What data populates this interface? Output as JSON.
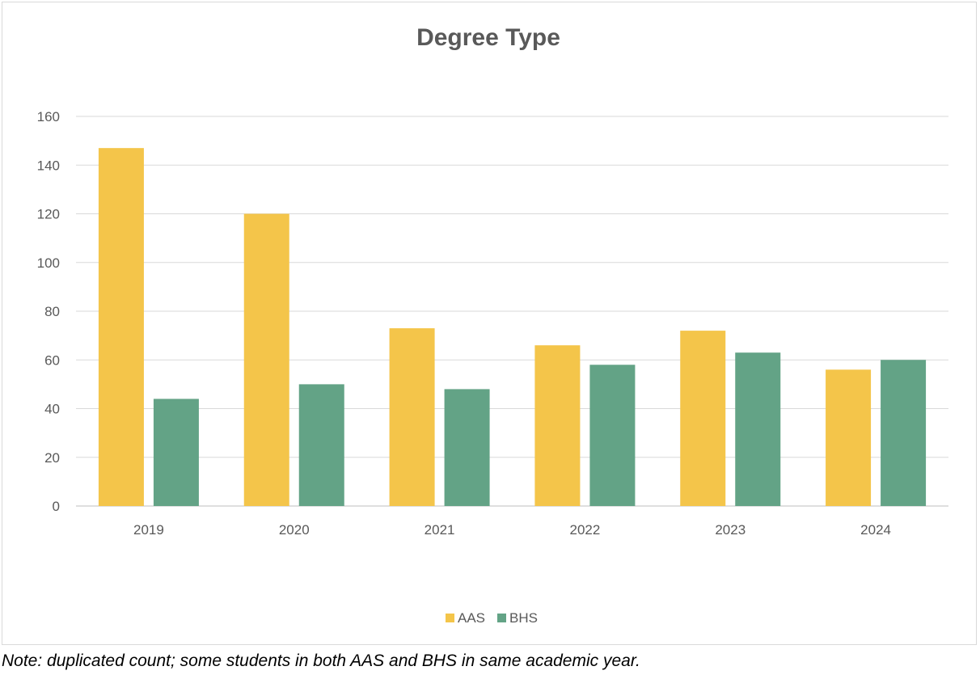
{
  "chart_data": {
    "type": "bar",
    "title": "Degree Type",
    "xlabel": "",
    "ylabel": "",
    "categories": [
      "2019",
      "2020",
      "2021",
      "2022",
      "2023",
      "2024"
    ],
    "series": [
      {
        "name": "AAS",
        "values": [
          147,
          120,
          73,
          66,
          72,
          56
        ],
        "color": "#F4C54A"
      },
      {
        "name": "BHS",
        "values": [
          44,
          50,
          48,
          58,
          63,
          60
        ],
        "color": "#63A386"
      }
    ],
    "ylim": [
      0,
      160
    ],
    "yticks": [
      0,
      20,
      40,
      60,
      80,
      100,
      120,
      140,
      160
    ],
    "grid": true,
    "legend_position": "bottom"
  },
  "note": "Note: duplicated count; some students in both AAS and BHS in same academic year."
}
